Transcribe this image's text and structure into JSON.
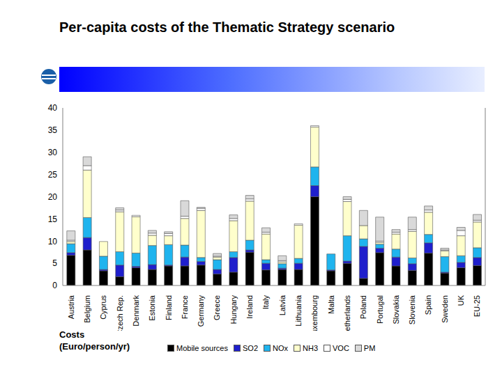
{
  "chart_data": {
    "type": "bar",
    "title": "Per-capita costs of the Thematic Strategy scenario",
    "y_label": "Costs (Euro/person/yr)",
    "stacked": true,
    "grid": false,
    "legend": "bottom",
    "ylim": [
      0,
      40
    ],
    "yticks": [
      0,
      5,
      10,
      15,
      20,
      25,
      30,
      35,
      40
    ],
    "categories": [
      "Austria",
      "Belgium",
      "Cyprus",
      "Czech Rep.",
      "Denmark",
      "Estonia",
      "Finland",
      "France",
      "Germany",
      "Greece",
      "Hungary",
      "Ireland",
      "Italy",
      "Latvia",
      "Lithuania",
      "Luxembourg",
      "Malta",
      "Netherlands",
      "Poland",
      "Portugal",
      "Slovakia",
      "Slovenia",
      "Spain",
      "Sweden",
      "UK",
      "EU-25"
    ],
    "series": [
      {
        "name": "Mobile sources",
        "color": "#000000",
        "values": [
          6.8,
          8,
          3.3,
          2,
          4,
          3.6,
          4.4,
          4.4,
          4.6,
          2.6,
          3,
          7.5,
          3.5,
          3.6,
          3.6,
          20,
          3.3,
          5,
          1.6,
          7.4,
          4.4,
          3.4,
          7.3,
          2.8,
          4,
          4.5
        ]
      },
      {
        "name": "SO2",
        "color": "#1f1fcc",
        "values": [
          0.6,
          2.8,
          0.3,
          2.6,
          0.3,
          1.1,
          0.2,
          2,
          0.8,
          1,
          3.3,
          0.5,
          1.5,
          0.3,
          1.4,
          2.5,
          0.2,
          0.5,
          7.2,
          1,
          2,
          1.5,
          2.3,
          0.2,
          1.2,
          1.8
        ]
      },
      {
        "name": "NOx",
        "color": "#1fb4ee",
        "values": [
          2,
          4.5,
          3,
          3,
          3,
          4.3,
          4.6,
          2.7,
          0.9,
          2.2,
          1.3,
          2.2,
          0.8,
          1,
          1.1,
          4.2,
          3.6,
          5.7,
          1.7,
          0.9,
          1.8,
          1.3,
          1.9,
          3.5,
          1.5,
          2.2
        ]
      },
      {
        "name": "NH3",
        "color": "#ffffcc",
        "values": [
          0.5,
          10.7,
          3.3,
          9,
          8.2,
          2.3,
          2,
          6,
          10.6,
          0.6,
          7,
          8.8,
          5.8,
          0.4,
          7.5,
          9,
          0,
          7.7,
          3,
          0.4,
          3.4,
          6,
          5,
          1.3,
          4.5,
          5.8
        ]
      },
      {
        "name": "VOC",
        "color": "#ffffff",
        "values": [
          0.3,
          1,
          0,
          0.4,
          0.3,
          0.5,
          0.5,
          0.5,
          0.5,
          0.2,
          0.5,
          0.5,
          0.4,
          0.3,
          0.3,
          0.3,
          0,
          0.5,
          0,
          0.3,
          0.4,
          0.4,
          0.5,
          0.2,
          1.2,
          0.4
        ]
      },
      {
        "name": "PM",
        "color": "#d9d9d9",
        "values": [
          2.1,
          2,
          0,
          0.5,
          0,
          0.6,
          0.4,
          3.5,
          0.2,
          0.6,
          0.8,
          0.8,
          1,
          1.1,
          0,
          0,
          0,
          0.6,
          3.4,
          5.4,
          0.6,
          2.8,
          0.9,
          0.4,
          0.7,
          1.3
        ]
      }
    ]
  }
}
